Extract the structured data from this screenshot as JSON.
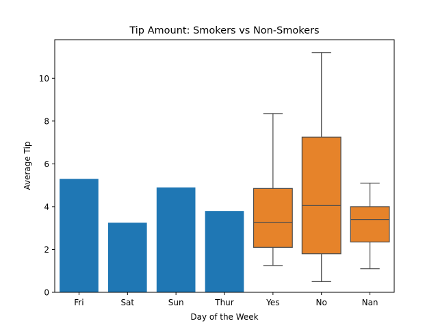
{
  "chart_data": {
    "type": "bar",
    "title": "Tip Amount: Smokers vs Non-Smokers",
    "xlabel": "Day of the Week",
    "ylabel": "Average Tip",
    "ylim": [
      0,
      11.8
    ],
    "yticks": [
      "0",
      "2",
      "4",
      "6",
      "8",
      "10"
    ],
    "grid": false,
    "categories": [
      "Fri",
      "Sat",
      "Sun",
      "Thur",
      "Yes",
      "No",
      "Nan"
    ],
    "bars": {
      "color": "#1f77b4",
      "items": [
        {
          "category": "Fri",
          "value": 5.3
        },
        {
          "category": "Sat",
          "value": 3.25
        },
        {
          "category": "Sun",
          "value": 4.9
        },
        {
          "category": "Thur",
          "value": 3.8
        }
      ]
    },
    "boxes": {
      "color": "#e6832a",
      "edge_color": "#4d4d4d",
      "items": [
        {
          "category": "Yes",
          "whislo": 1.25,
          "q1": 2.1,
          "med": 3.25,
          "q3": 4.85,
          "whishi": 8.35
        },
        {
          "category": "No",
          "whislo": 0.5,
          "q1": 1.8,
          "med": 4.05,
          "q3": 7.25,
          "whishi": 11.2
        },
        {
          "category": "Nan",
          "whislo": 1.1,
          "q1": 2.35,
          "med": 3.4,
          "q3": 4.0,
          "whishi": 5.1
        }
      ]
    }
  }
}
